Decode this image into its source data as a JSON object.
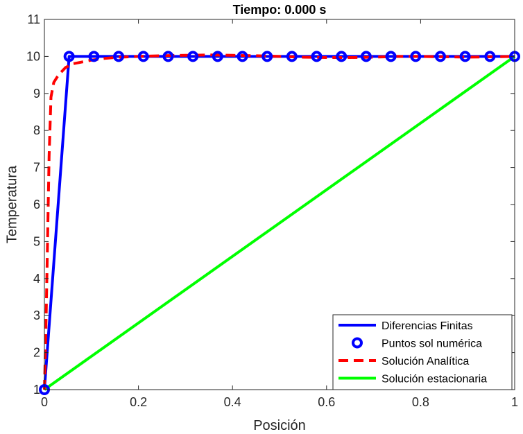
{
  "chart_data": {
    "type": "line",
    "title": "Tiempo: 0.000 s",
    "xlabel": "Posición",
    "ylabel": "Temperatura",
    "xlim": [
      0,
      1
    ],
    "ylim": [
      1,
      11
    ],
    "xticks": [
      "0",
      "0.2",
      "0.4",
      "0.6",
      "0.8",
      "1"
    ],
    "yticks": [
      "1",
      "2",
      "3",
      "4",
      "5",
      "6",
      "7",
      "8",
      "9",
      "10",
      "11"
    ],
    "grid": false,
    "legend_position": "bottom-right",
    "series": [
      {
        "name": "Diferencias Finitas",
        "style": "solid-line",
        "color": "#0000ff",
        "x": [
          0,
          0.0526,
          0.1053,
          0.1579,
          0.2105,
          0.2632,
          0.3158,
          0.3684,
          0.4211,
          0.4737,
          0.5263,
          0.5789,
          0.6316,
          0.6842,
          0.7368,
          0.7895,
          0.8421,
          0.8947,
          0.9474,
          1
        ],
        "y": [
          1,
          10,
          10,
          10,
          10,
          10,
          10,
          10,
          10,
          10,
          10,
          10,
          10,
          10,
          10,
          10,
          10,
          10,
          10,
          10
        ]
      },
      {
        "name": "Puntos sol numérica",
        "style": "circle-markers",
        "color": "#0000ff",
        "x": [
          0,
          0.0526,
          0.1053,
          0.1579,
          0.2105,
          0.2632,
          0.3158,
          0.3684,
          0.4211,
          0.4737,
          0.5263,
          0.5789,
          0.6316,
          0.6842,
          0.7368,
          0.7895,
          0.8421,
          0.8947,
          0.9474,
          1
        ],
        "y": [
          1,
          10,
          10,
          10,
          10,
          10,
          10,
          10,
          10,
          10,
          10,
          10,
          10,
          10,
          10,
          10,
          10,
          10,
          10,
          10
        ]
      },
      {
        "name": "Solución Analítica",
        "style": "dashed-line",
        "color": "#ff0000",
        "x": [
          0,
          0.003,
          0.006,
          0.01,
          0.014,
          0.02,
          0.03,
          0.045,
          0.06,
          0.08,
          0.1,
          0.13,
          0.16,
          0.2,
          0.25,
          0.3,
          0.35,
          0.4,
          0.45,
          0.5,
          0.55,
          0.6,
          0.65,
          0.7,
          0.75,
          0.8,
          0.85,
          0.9,
          0.95,
          1
        ],
        "y": [
          1,
          2.5,
          4.5,
          7.3,
          8.9,
          9.3,
          9.5,
          9.7,
          9.8,
          9.85,
          9.9,
          9.95,
          9.98,
          10.0,
          10.02,
          10.03,
          10.04,
          10.03,
          10.02,
          10.0,
          9.98,
          9.97,
          9.97,
          9.98,
          10.0,
          10.0,
          9.99,
          9.98,
          9.99,
          10.0
        ]
      },
      {
        "name": "Solución estacionaria",
        "style": "solid-line",
        "color": "#00ff00",
        "x": [
          0,
          1
        ],
        "y": [
          1,
          10
        ]
      }
    ]
  }
}
